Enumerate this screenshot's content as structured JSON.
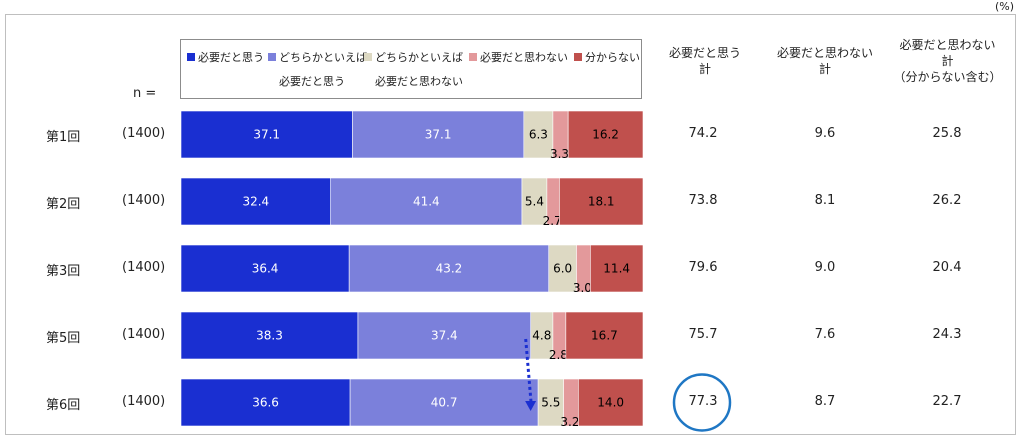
{
  "unit_label": "(%)",
  "n_header": "n =",
  "legend": [
    {
      "line1": "必要だと思う",
      "line2": "",
      "color": "#1a2fd1"
    },
    {
      "line1": "どちらかといえば",
      "line2": "必要だと思う",
      "color": "#7b80db"
    },
    {
      "line1": "どちらかといえば",
      "line2": "必要だと思わない",
      "color": "#ddd9c3"
    },
    {
      "line1": "必要だと思わない",
      "line2": "",
      "color": "#e3999b"
    },
    {
      "line1": "分からない",
      "line2": "",
      "color": "#c0504d"
    }
  ],
  "columns": {
    "col1_l1": "必要だと思う",
    "col1_l2": "計",
    "col2_l1": "必要だと思わない",
    "col2_l2": "計",
    "col3_l1": "必要だと思わない",
    "col3_l2": "計",
    "col3_l3": "（分からない含む）"
  },
  "chart_data": {
    "type": "bar",
    "stacked": true,
    "orientation": "horizontal",
    "categories": [
      "第1回",
      "第2回",
      "第3回",
      "第5回",
      "第6回"
    ],
    "n": [
      "(1400)",
      "(1400)",
      "(1400)",
      "(1400)",
      "(1400)"
    ],
    "series": [
      {
        "name": "必要だと思う",
        "color": "#1a2fd1",
        "values": [
          37.1,
          32.4,
          36.4,
          38.3,
          36.6
        ]
      },
      {
        "name": "どちらかといえば必要だと思う",
        "color": "#7b80db",
        "values": [
          37.1,
          41.4,
          43.2,
          37.4,
          40.7
        ]
      },
      {
        "name": "どちらかといえば必要だと思わない",
        "color": "#ddd9c3",
        "values": [
          6.3,
          5.4,
          6.0,
          4.8,
          5.5
        ]
      },
      {
        "name": "必要だと思わない",
        "color": "#e3999b",
        "values": [
          3.3,
          2.7,
          3.0,
          2.8,
          3.2
        ]
      },
      {
        "name": "分からない",
        "color": "#c0504d",
        "values": [
          16.2,
          18.1,
          11.4,
          16.7,
          14.0
        ]
      }
    ],
    "value_labels": [
      [
        "37.1",
        "37.1",
        "6.3",
        "3.3",
        "16.2"
      ],
      [
        "32.4",
        "41.4",
        "5.4",
        "2.7",
        "18.1"
      ],
      [
        "36.4",
        "43.2",
        "6.0",
        "3.0",
        "11.4"
      ],
      [
        "38.3",
        "37.4",
        "4.8",
        "2.8",
        "16.7"
      ],
      [
        "36.6",
        "40.7",
        "5.5",
        "3.2",
        "14.0"
      ]
    ],
    "totals": {
      "necessary_total": [
        "74.2",
        "73.8",
        "79.6",
        "75.7",
        "77.3"
      ],
      "not_necessary_total": [
        "9.6",
        "8.1",
        "9.0",
        "7.6",
        "8.7"
      ],
      "not_necessary_incl_unknown": [
        "25.8",
        "26.2",
        "20.4",
        "24.3",
        "22.7"
      ]
    },
    "xlim": [
      0,
      100
    ],
    "highlight": {
      "row": "第6回",
      "column": "necessary_total",
      "value": "77.3"
    }
  }
}
